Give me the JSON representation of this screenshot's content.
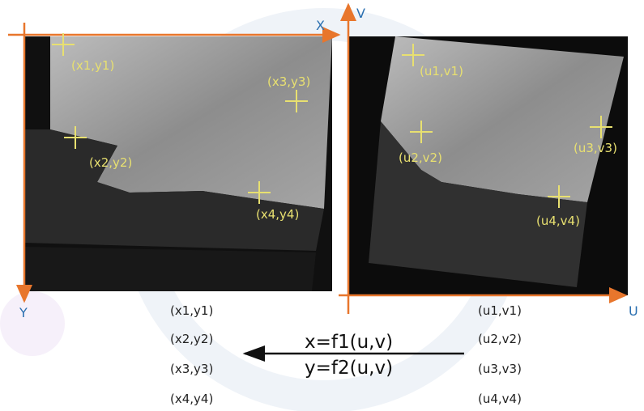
{
  "axes": {
    "x": "X",
    "y": "Y",
    "u": "U",
    "v": "V"
  },
  "left_points": [
    "(x1,y1)",
    "(x2,y2)",
    "(x3,y3)",
    "(x4,y4)"
  ],
  "right_points": [
    "(u1,v1)",
    "(u2,v2)",
    "(u3,v3)",
    "(u4,v4)"
  ],
  "left_list": [
    "(x1,y1)",
    "(x2,y2)",
    "(x3,y3)",
    "(x4,y4)"
  ],
  "right_list": [
    "(u1,v1)",
    "(u2,v2)",
    "(u3,v3)",
    "(u4,v4)"
  ],
  "equations": [
    "x=f1(u,v)",
    "y=f2(u,v)"
  ]
}
